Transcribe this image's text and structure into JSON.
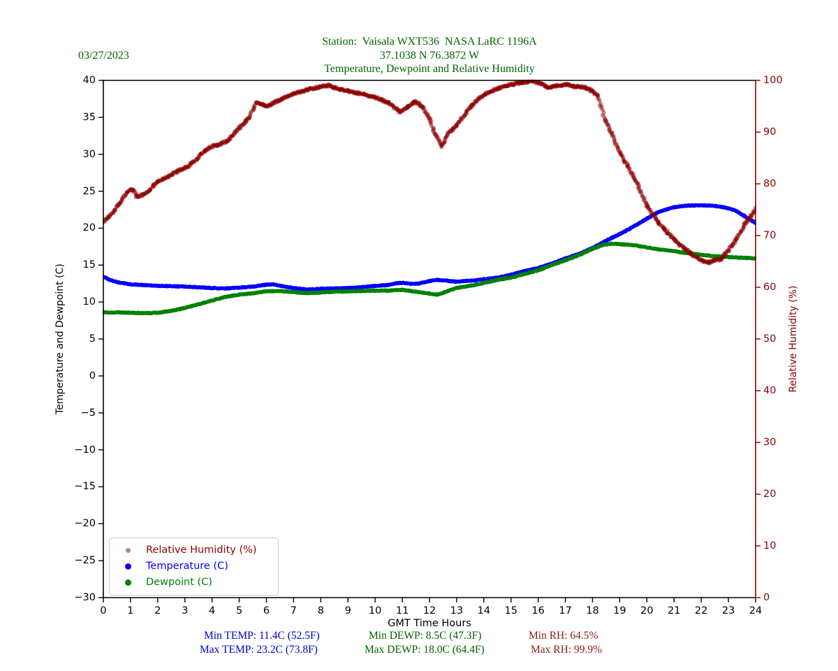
{
  "date_label": "03/27/2023",
  "title": {
    "line1": "Station:  Vaisala WXT536  NASA LaRC 1196A",
    "line2": "37.1038 N 76.3872 W",
    "line3": "Temperature, Dewpoint and Relative Humidity"
  },
  "colors": {
    "title_green": "#006400",
    "temp_blue": "#0000ff",
    "dewp_green": "#008000",
    "rh_darkred": "#8b0000",
    "stat_temp": "#0000cd",
    "stat_dewp": "#006400",
    "stat_rh": "#8b1a1a",
    "axis_black": "#000000"
  },
  "legend": {
    "items": [
      {
        "label": "Relative Humidity (%)",
        "color": "#8b0000",
        "marker_color": "rgba(139,0,0,0.5)",
        "marker_size": 7
      },
      {
        "label": "Temperature (C)",
        "color": "#0000ff",
        "marker_color": "#0000ff",
        "marker_size": 9
      },
      {
        "label": "Dewpoint (C)",
        "color": "#008000",
        "marker_color": "#008000",
        "marker_size": 9
      }
    ]
  },
  "stats": {
    "min_temp": "Min TEMP: 11.4C (52.5F)",
    "max_temp": "Max TEMP: 23.2C (73.8F)",
    "min_dewp": "Min DEWP: 8.5C (47.3F)",
    "max_dewp": "Max DEWP: 18.0C (64.4F)",
    "min_rh": "Min RH: 64.5%",
    "max_rh": "Max RH: 99.9%"
  },
  "chart_data": {
    "type": "scatter",
    "xlabel": "GMT Time Hours",
    "y_left_label": "Temperature and Dewpoint (C)",
    "y_right_label": "Relative Humidity (%)",
    "x_range": [
      0,
      24
    ],
    "y_left_range": [
      -30,
      40
    ],
    "y_right_range": [
      0,
      100
    ],
    "x_ticks": [
      0,
      1,
      2,
      3,
      4,
      5,
      6,
      7,
      8,
      9,
      10,
      11,
      12,
      13,
      14,
      15,
      16,
      17,
      18,
      19,
      20,
      21,
      22,
      23,
      24
    ],
    "y_left_ticks": [
      40,
      35,
      30,
      25,
      20,
      15,
      10,
      5,
      0,
      -5,
      -10,
      -15,
      -20,
      -25,
      -30
    ],
    "y_right_ticks": [
      100,
      90,
      80,
      70,
      60,
      50,
      40,
      30,
      20,
      10,
      0
    ],
    "grid": false,
    "legend_position": "lower-left",
    "series": [
      {
        "name": "Temperature (C)",
        "axis": "left",
        "color": "#0000ff",
        "style": "scatter-dense",
        "points": [
          [
            0,
            13.4
          ],
          [
            0.25,
            13.0
          ],
          [
            0.5,
            12.7
          ],
          [
            1,
            12.4
          ],
          [
            1.5,
            12.3
          ],
          [
            2,
            12.2
          ],
          [
            2.5,
            12.15
          ],
          [
            3,
            12.1
          ],
          [
            3.5,
            12.0
          ],
          [
            4,
            11.9
          ],
          [
            4.5,
            11.85
          ],
          [
            5,
            11.95
          ],
          [
            5.5,
            12.1
          ],
          [
            6,
            12.35
          ],
          [
            6.25,
            12.4
          ],
          [
            6.6,
            12.15
          ],
          [
            7,
            11.9
          ],
          [
            7.5,
            11.7
          ],
          [
            8,
            11.8
          ],
          [
            8.5,
            11.85
          ],
          [
            9,
            11.9
          ],
          [
            9.5,
            12.0
          ],
          [
            10,
            12.2
          ],
          [
            10.5,
            12.3
          ],
          [
            10.8,
            12.55
          ],
          [
            11.05,
            12.6
          ],
          [
            11.3,
            12.45
          ],
          [
            11.6,
            12.5
          ],
          [
            12,
            12.85
          ],
          [
            12.3,
            13.0
          ],
          [
            12.6,
            12.9
          ],
          [
            13,
            12.75
          ],
          [
            13.3,
            12.85
          ],
          [
            13.7,
            12.95
          ],
          [
            14,
            13.1
          ],
          [
            14.5,
            13.3
          ],
          [
            15,
            13.7
          ],
          [
            15.5,
            14.2
          ],
          [
            16,
            14.6
          ],
          [
            16.5,
            15.2
          ],
          [
            17,
            15.9
          ],
          [
            17.5,
            16.5
          ],
          [
            18,
            17.3
          ],
          [
            18.5,
            18.3
          ],
          [
            19,
            19.2
          ],
          [
            19.5,
            20.2
          ],
          [
            20,
            21.3
          ],
          [
            20.5,
            22.3
          ],
          [
            21,
            22.85
          ],
          [
            21.5,
            23.05
          ],
          [
            22,
            23.1
          ],
          [
            22.4,
            23.05
          ],
          [
            22.8,
            22.85
          ],
          [
            23,
            22.7
          ],
          [
            23.3,
            22.3
          ],
          [
            23.6,
            21.6
          ],
          [
            24,
            20.7
          ]
        ]
      },
      {
        "name": "Dewpoint (C)",
        "axis": "left",
        "color": "#008000",
        "style": "scatter-dense",
        "points": [
          [
            0,
            8.6
          ],
          [
            0.5,
            8.6
          ],
          [
            1,
            8.55
          ],
          [
            1.5,
            8.5
          ],
          [
            2,
            8.55
          ],
          [
            2.5,
            8.8
          ],
          [
            3,
            9.2
          ],
          [
            3.5,
            9.7
          ],
          [
            4,
            10.2
          ],
          [
            4.5,
            10.7
          ],
          [
            5,
            11.0
          ],
          [
            5.5,
            11.2
          ],
          [
            6,
            11.45
          ],
          [
            6.5,
            11.5
          ],
          [
            7,
            11.35
          ],
          [
            7.5,
            11.2
          ],
          [
            8,
            11.3
          ],
          [
            8.5,
            11.4
          ],
          [
            9,
            11.45
          ],
          [
            9.5,
            11.5
          ],
          [
            10,
            11.55
          ],
          [
            10.5,
            11.55
          ],
          [
            11,
            11.65
          ],
          [
            11.3,
            11.5
          ],
          [
            11.6,
            11.35
          ],
          [
            12,
            11.15
          ],
          [
            12.3,
            11.0
          ],
          [
            12.6,
            11.4
          ],
          [
            13,
            11.9
          ],
          [
            13.5,
            12.2
          ],
          [
            14,
            12.6
          ],
          [
            14.5,
            13.0
          ],
          [
            15,
            13.3
          ],
          [
            15.5,
            13.8
          ],
          [
            16,
            14.3
          ],
          [
            16.5,
            15.0
          ],
          [
            17,
            15.65
          ],
          [
            17.5,
            16.35
          ],
          [
            18,
            17.2
          ],
          [
            18.4,
            17.75
          ],
          [
            18.7,
            17.9
          ],
          [
            19,
            17.85
          ],
          [
            19.5,
            17.7
          ],
          [
            20,
            17.4
          ],
          [
            20.5,
            17.1
          ],
          [
            21,
            16.9
          ],
          [
            21.5,
            16.6
          ],
          [
            22,
            16.4
          ],
          [
            22.5,
            16.2
          ],
          [
            23,
            16.1
          ],
          [
            23.5,
            16.0
          ],
          [
            24,
            15.9
          ]
        ]
      },
      {
        "name": "Relative Humidity (%)",
        "axis": "right",
        "color": "#8b0000",
        "style": "scatter-light",
        "points": [
          [
            0,
            72.5
          ],
          [
            0.3,
            74.3
          ],
          [
            0.6,
            76.3
          ],
          [
            0.9,
            78.6
          ],
          [
            1.05,
            79.0
          ],
          [
            1.25,
            77.4
          ],
          [
            1.6,
            78.3
          ],
          [
            1.9,
            80.0
          ],
          [
            2.2,
            80.9
          ],
          [
            2.5,
            81.8
          ],
          [
            2.8,
            82.6
          ],
          [
            3.1,
            83.3
          ],
          [
            3.4,
            84.6
          ],
          [
            3.7,
            86.2
          ],
          [
            4,
            87.3
          ],
          [
            4.25,
            87.5
          ],
          [
            4.6,
            88.5
          ],
          [
            5,
            90.8
          ],
          [
            5.35,
            92.6
          ],
          [
            5.65,
            95.8
          ],
          [
            5.85,
            95.3
          ],
          [
            6.05,
            95.0
          ],
          [
            6.3,
            95.8
          ],
          [
            6.6,
            96.4
          ],
          [
            7,
            97.4
          ],
          [
            7.5,
            98.2
          ],
          [
            8,
            98.8
          ],
          [
            8.3,
            99.0
          ],
          [
            8.7,
            98.3
          ],
          [
            9,
            97.9
          ],
          [
            9.5,
            97.4
          ],
          [
            10,
            96.7
          ],
          [
            10.5,
            95.7
          ],
          [
            10.9,
            93.9
          ],
          [
            11.2,
            94.9
          ],
          [
            11.5,
            95.9
          ],
          [
            11.75,
            94.8
          ],
          [
            12,
            92.6
          ],
          [
            12.2,
            89.8
          ],
          [
            12.45,
            87.2
          ],
          [
            12.7,
            89.8
          ],
          [
            13,
            91.3
          ],
          [
            13.5,
            94.9
          ],
          [
            14,
            97.2
          ],
          [
            14.5,
            98.4
          ],
          [
            15,
            99.2
          ],
          [
            15.4,
            99.6
          ],
          [
            15.8,
            99.8
          ],
          [
            16.1,
            99.4
          ],
          [
            16.35,
            98.6
          ],
          [
            16.7,
            99.0
          ],
          [
            17,
            99.2
          ],
          [
            17.35,
            98.8
          ],
          [
            17.7,
            98.7
          ],
          [
            18,
            97.9
          ],
          [
            18.2,
            97.1
          ],
          [
            18.45,
            92.5
          ],
          [
            18.7,
            89.8
          ],
          [
            19,
            86.0
          ],
          [
            19.3,
            83.4
          ],
          [
            19.6,
            80.6
          ],
          [
            20,
            75.8
          ],
          [
            20.4,
            72.7
          ],
          [
            20.8,
            70.3
          ],
          [
            21.2,
            68.3
          ],
          [
            21.6,
            66.6
          ],
          [
            22,
            65.2
          ],
          [
            22.25,
            64.7
          ],
          [
            22.5,
            65.2
          ],
          [
            22.75,
            65.5
          ],
          [
            23,
            67.2
          ],
          [
            23.3,
            69.3
          ],
          [
            23.6,
            72.2
          ],
          [
            23.85,
            73.8
          ],
          [
            24,
            75.4
          ]
        ]
      }
    ]
  }
}
